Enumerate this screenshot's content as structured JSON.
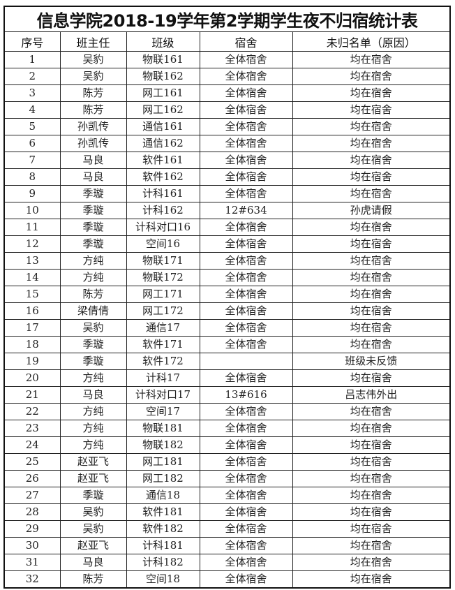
{
  "title": "信息学院2018-19学年第2学期学生夜不归宿统计表",
  "columns": [
    "序号",
    "班主任",
    "班级",
    "宿舍",
    "未归名单（原因）"
  ],
  "rows": [
    [
      "1",
      "吴豹",
      "物联161",
      "全体宿舍",
      "均在宿舍"
    ],
    [
      "2",
      "吴豹",
      "物联162",
      "全体宿舍",
      "均在宿舍"
    ],
    [
      "3",
      "陈芳",
      "网工161",
      "全体宿舍",
      "均在宿舍"
    ],
    [
      "4",
      "陈芳",
      "网工162",
      "全体宿舍",
      "均在宿舍"
    ],
    [
      "5",
      "孙凯传",
      "通信161",
      "全体宿舍",
      "均在宿舍"
    ],
    [
      "6",
      "孙凯传",
      "通信162",
      "全体宿舍",
      "均在宿舍"
    ],
    [
      "7",
      "马良",
      "软件161",
      "全体宿舍",
      "均在宿舍"
    ],
    [
      "8",
      "马良",
      "软件162",
      "全体宿舍",
      "均在宿舍"
    ],
    [
      "9",
      "季璇",
      "计科161",
      "全体宿舍",
      "均在宿舍"
    ],
    [
      "10",
      "季璇",
      "计科162",
      "12#634",
      "孙虎请假"
    ],
    [
      "11",
      "季璇",
      "计科对口16",
      "全体宿舍",
      "均在宿舍"
    ],
    [
      "12",
      "季璇",
      "空间16",
      "全体宿舍",
      "均在宿舍"
    ],
    [
      "13",
      "方纯",
      "物联171",
      "全体宿舍",
      "均在宿舍"
    ],
    [
      "14",
      "方纯",
      "物联172",
      "全体宿舍",
      "均在宿舍"
    ],
    [
      "15",
      "陈芳",
      "网工171",
      "全体宿舍",
      "均在宿舍"
    ],
    [
      "16",
      "梁倩倩",
      "网工172",
      "全体宿舍",
      "均在宿舍"
    ],
    [
      "17",
      "吴豹",
      "通信17",
      "全体宿舍",
      "均在宿舍"
    ],
    [
      "18",
      "季璇",
      "软件171",
      "全体宿舍",
      "均在宿舍"
    ],
    [
      "19",
      "季璇",
      "软件172",
      "",
      "班级未反馈"
    ],
    [
      "20",
      "方纯",
      "计科17",
      "全体宿舍",
      "均在宿舍"
    ],
    [
      "21",
      "马良",
      "计科对口17",
      "13#616",
      "吕志伟外出"
    ],
    [
      "22",
      "方纯",
      "空间17",
      "全体宿舍",
      "均在宿舍"
    ],
    [
      "23",
      "方纯",
      "物联181",
      "全体宿舍",
      "均在宿舍"
    ],
    [
      "24",
      "方纯",
      "物联182",
      "全体宿舍",
      "均在宿舍"
    ],
    [
      "25",
      "赵亚飞",
      "网工181",
      "全体宿舍",
      "均在宿舍"
    ],
    [
      "26",
      "赵亚飞",
      "网工182",
      "全体宿舍",
      "均在宿舍"
    ],
    [
      "27",
      "季璇",
      "通信18",
      "全体宿舍",
      "均在宿舍"
    ],
    [
      "28",
      "吴豹",
      "软件181",
      "全体宿舍",
      "均在宿舍"
    ],
    [
      "29",
      "吴豹",
      "软件182",
      "全体宿舍",
      "均在宿舍"
    ],
    [
      "30",
      "赵亚飞",
      "计科181",
      "全体宿舍",
      "均在宿舍"
    ],
    [
      "31",
      "马良",
      "计科182",
      "全体宿舍",
      "均在宿舍"
    ],
    [
      "32",
      "陈芳",
      "空间18",
      "全体宿舍",
      "均在宿舍"
    ]
  ]
}
